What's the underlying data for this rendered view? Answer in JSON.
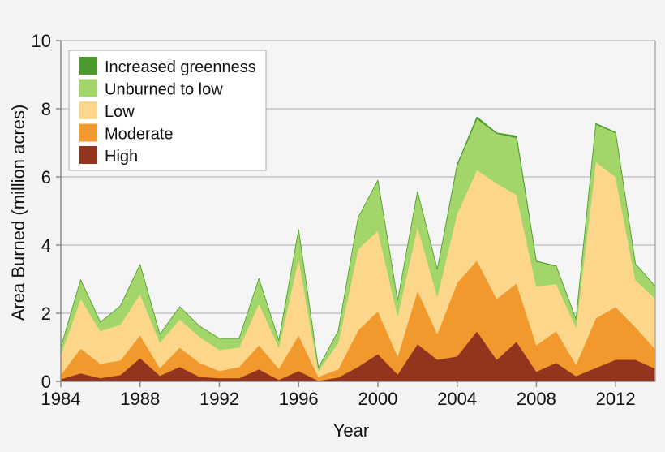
{
  "chart_data": {
    "type": "area",
    "stacked": true,
    "title": "",
    "xlabel": "Year",
    "ylabel": "Area Burned (million acres)",
    "xlim": [
      1984,
      2014
    ],
    "ylim": [
      0,
      10
    ],
    "x_ticks": [
      1984,
      1988,
      1992,
      1996,
      2000,
      2004,
      2008,
      2012
    ],
    "y_ticks": [
      0,
      2,
      4,
      6,
      8,
      10
    ],
    "grid": "horizontal",
    "legend_position": "top-left",
    "x": [
      1984,
      1985,
      1986,
      1987,
      1988,
      1989,
      1990,
      1991,
      1992,
      1993,
      1994,
      1995,
      1996,
      1997,
      1998,
      1999,
      2000,
      2001,
      2002,
      2003,
      2004,
      2005,
      2006,
      2007,
      2008,
      2009,
      2010,
      2011,
      2012,
      2013,
      2014
    ],
    "series": [
      {
        "name": "High",
        "color": "#93341f",
        "values": [
          0.07,
          0.24,
          0.1,
          0.19,
          0.69,
          0.17,
          0.43,
          0.14,
          0.1,
          0.1,
          0.36,
          0.05,
          0.31,
          0.02,
          0.12,
          0.43,
          0.81,
          0.21,
          1.1,
          0.64,
          0.74,
          1.48,
          0.64,
          1.17,
          0.29,
          0.55,
          0.16,
          0.4,
          0.64,
          0.64,
          0.38
        ]
      },
      {
        "name": "Moderate",
        "color": "#f2992e",
        "values": [
          0.13,
          0.73,
          0.42,
          0.43,
          0.67,
          0.23,
          0.57,
          0.41,
          0.21,
          0.33,
          0.71,
          0.33,
          1.05,
          0.12,
          0.24,
          1.07,
          1.26,
          0.53,
          1.57,
          0.76,
          2.16,
          2.07,
          1.79,
          1.71,
          0.78,
          0.93,
          0.34,
          1.46,
          1.55,
          0.96,
          0.57
        ]
      },
      {
        "name": "Low",
        "color": "#fcd68b",
        "values": [
          0.6,
          1.46,
          0.96,
          1.05,
          1.21,
          0.74,
          0.83,
          0.76,
          0.62,
          0.57,
          1.22,
          0.62,
          2.26,
          0.17,
          0.78,
          2.38,
          2.36,
          1.19,
          1.88,
          1.1,
          2.03,
          2.66,
          3.38,
          2.6,
          1.72,
          1.38,
          1.1,
          4.59,
          3.81,
          1.38,
          1.48
        ]
      },
      {
        "name": "Unburned to low",
        "color": "#a2d66b",
        "values": [
          0.2,
          0.55,
          0.26,
          0.54,
          0.86,
          0.24,
          0.36,
          0.31,
          0.33,
          0.26,
          0.73,
          0.2,
          0.83,
          0.09,
          0.34,
          0.92,
          1.47,
          0.45,
          1.02,
          0.79,
          1.4,
          1.5,
          1.46,
          1.67,
          0.73,
          0.52,
          0.23,
          1.1,
          1.29,
          0.47,
          0.36
        ]
      },
      {
        "name": "Increased greenness",
        "color": "#4a9a2c",
        "values": [
          0,
          0,
          0,
          0,
          0,
          0,
          0,
          0,
          0,
          0,
          0,
          0,
          0,
          0,
          0,
          0,
          0,
          0,
          0,
          0,
          0.03,
          0.05,
          0.02,
          0.05,
          0.01,
          0.01,
          0,
          0.02,
          0.02,
          0,
          0
        ]
      }
    ],
    "legend_order": [
      "Increased greenness",
      "Unburned to low",
      "Low",
      "Moderate",
      "High"
    ]
  }
}
